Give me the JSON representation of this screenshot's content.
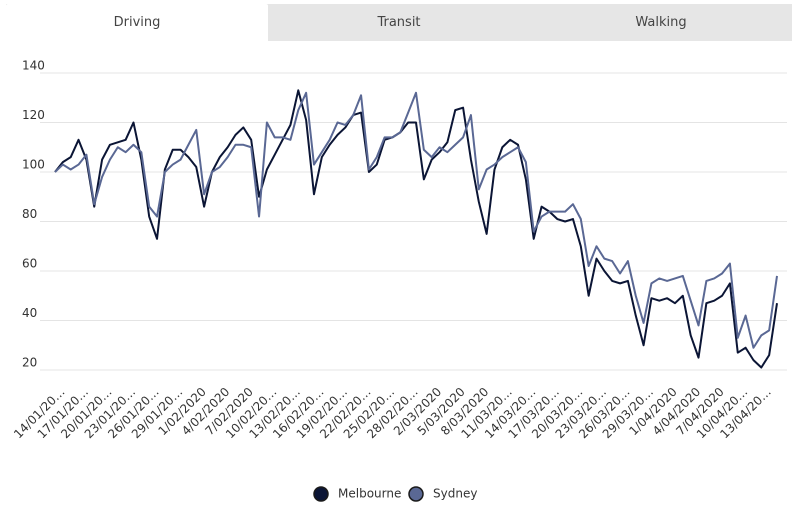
{
  "tabs": [
    "Driving",
    "Transit",
    "Walking"
  ],
  "chart_data": {
    "type": "line",
    "categories": [
      "14/01/20…",
      null,
      null,
      "17/01/20…",
      null,
      null,
      "20/01/20…",
      null,
      null,
      "23/01/20…",
      null,
      null,
      "26/01/20…",
      null,
      null,
      "29/01/20…",
      null,
      null,
      "1/02/2020",
      null,
      null,
      "4/02/2020",
      null,
      null,
      "7/02/2020",
      null,
      null,
      "10/02/20…",
      null,
      null,
      "13/02/20…",
      null,
      null,
      "16/02/20…",
      null,
      null,
      "19/02/20…",
      null,
      null,
      "22/02/20…",
      null,
      null,
      "25/02/20…",
      null,
      null,
      "28/02/20…",
      null,
      null,
      "2/03/2020",
      null,
      null,
      "5/03/2020",
      null,
      null,
      "8/03/2020",
      null,
      null,
      "11/03/20…",
      null,
      null,
      "14/03/20…",
      null,
      null,
      "17/03/20…",
      null,
      null,
      "20/03/20…",
      null,
      null,
      "23/03/20…",
      null,
      null,
      "26/03/20…",
      null,
      null,
      "29/03/20…",
      null,
      null,
      "1/04/2020",
      null,
      null,
      "4/04/2020",
      null,
      null,
      "7/04/2020",
      null,
      null,
      "10/04/20…",
      null,
      null,
      "13/04/20…",
      null,
      null
    ],
    "series": [
      {
        "name": "Melbourne",
        "color": "#0b1535",
        "values": [
          100,
          104,
          106,
          113,
          105,
          86,
          105,
          111,
          112,
          113,
          120,
          105,
          82,
          73,
          101,
          109,
          109,
          106,
          102,
          86,
          100,
          106,
          110,
          115,
          118,
          113,
          90,
          101,
          107,
          113,
          119,
          133,
          121,
          91,
          106,
          111,
          115,
          118,
          123,
          124,
          100,
          103,
          113,
          114,
          116,
          120,
          120,
          97,
          105,
          108,
          112,
          125,
          126,
          105,
          88,
          75,
          101,
          110,
          113,
          111,
          97,
          73,
          86,
          84,
          81,
          80,
          81,
          70,
          50,
          65,
          60,
          56,
          55,
          56,
          42,
          30,
          49,
          48,
          49,
          47,
          50,
          34,
          25,
          47,
          48,
          50,
          55,
          27,
          29,
          24,
          21,
          26,
          47
        ]
      },
      {
        "name": "Sydney",
        "color": "#5a6894",
        "values": [
          100,
          103,
          101,
          103,
          107,
          87,
          98,
          105,
          110,
          108,
          111,
          108,
          86,
          82,
          100,
          103,
          105,
          111,
          117,
          91,
          100,
          102,
          106,
          111,
          111,
          110,
          82,
          120,
          114,
          114,
          113,
          125,
          132,
          103,
          108,
          113,
          120,
          119,
          123,
          131,
          101,
          106,
          114,
          114,
          116,
          124,
          132,
          109,
          106,
          110,
          108,
          111,
          114,
          123,
          93,
          101,
          103,
          106,
          108,
          110,
          104,
          76,
          82,
          84,
          84,
          84,
          87,
          81,
          62,
          70,
          65,
          64,
          59,
          64,
          50,
          39,
          55,
          57,
          56,
          57,
          58,
          48,
          38,
          56,
          57,
          59,
          63,
          33,
          42,
          29,
          34,
          36,
          58
        ]
      }
    ],
    "ylim": [
      20,
      140
    ],
    "yticks": [
      20,
      40,
      60,
      80,
      100,
      120,
      140
    ],
    "grid": true
  }
}
